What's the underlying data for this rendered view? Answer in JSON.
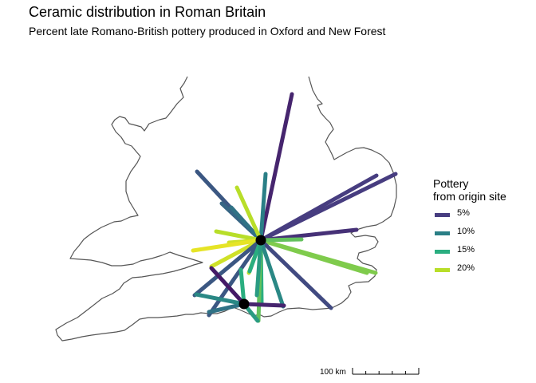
{
  "title": "Ceramic distribution in Roman Britain",
  "subtitle": "Percent late Romano-British pottery produced in Oxford and New Forest",
  "legend": {
    "title_line1": "Pottery",
    "title_line2": "from origin site",
    "items": [
      {
        "label": "5%",
        "color": "#473d80"
      },
      {
        "label": "10%",
        "color": "#2a7f86"
      },
      {
        "label": "15%",
        "color": "#2aae80"
      },
      {
        "label": "20%",
        "color": "#b8de29"
      }
    ]
  },
  "scale_bar": {
    "label": "100 km"
  },
  "origin_sites": [
    {
      "name": "Oxford"
    },
    {
      "name": "New Forest"
    }
  ],
  "colors": {
    "coast": "#555555",
    "site": "#000000"
  },
  "chart_data": {
    "type": "flow-map",
    "title": "Ceramic distribution in Roman Britain",
    "subtitle": "Percent late Romano-British pottery produced in Oxford and New Forest",
    "legend_title": "Pottery from origin site",
    "legend_breaks": [
      "5%",
      "10%",
      "15%",
      "20%"
    ],
    "color_scale": "viridis",
    "flows": [
      {
        "origin": "Oxford",
        "pct": 3
      },
      {
        "origin": "Oxford",
        "pct": 5
      },
      {
        "origin": "Oxford",
        "pct": 5
      },
      {
        "origin": "Oxford",
        "pct": 4
      },
      {
        "origin": "Oxford",
        "pct": 7
      },
      {
        "origin": "Oxford",
        "pct": 8
      },
      {
        "origin": "Oxford",
        "pct": 9
      },
      {
        "origin": "Oxford",
        "pct": 10
      },
      {
        "origin": "Oxford",
        "pct": 20
      },
      {
        "origin": "Oxford",
        "pct": 20
      },
      {
        "origin": "Oxford",
        "pct": 21
      },
      {
        "origin": "Oxford",
        "pct": 22
      },
      {
        "origin": "Oxford",
        "pct": 21
      },
      {
        "origin": "Oxford",
        "pct": 18
      },
      {
        "origin": "Oxford",
        "pct": 18
      },
      {
        "origin": "Oxford",
        "pct": 17
      },
      {
        "origin": "Oxford",
        "pct": 20
      },
      {
        "origin": "Oxford",
        "pct": 7
      },
      {
        "origin": "Oxford",
        "pct": 7
      },
      {
        "origin": "Oxford",
        "pct": 15
      },
      {
        "origin": "Oxford",
        "pct": 15
      },
      {
        "origin": "Oxford",
        "pct": 17
      },
      {
        "origin": "Oxford",
        "pct": 6
      },
      {
        "origin": "Oxford",
        "pct": 11
      },
      {
        "origin": "Oxford",
        "pct": 13
      },
      {
        "origin": "New Forest",
        "pct": 9
      },
      {
        "origin": "New Forest",
        "pct": 11
      },
      {
        "origin": "New Forest",
        "pct": 12
      },
      {
        "origin": "New Forest",
        "pct": 15
      },
      {
        "origin": "New Forest",
        "pct": 2
      },
      {
        "origin": "New Forest",
        "pct": 3
      },
      {
        "origin": "New Forest",
        "pct": 13
      }
    ]
  }
}
